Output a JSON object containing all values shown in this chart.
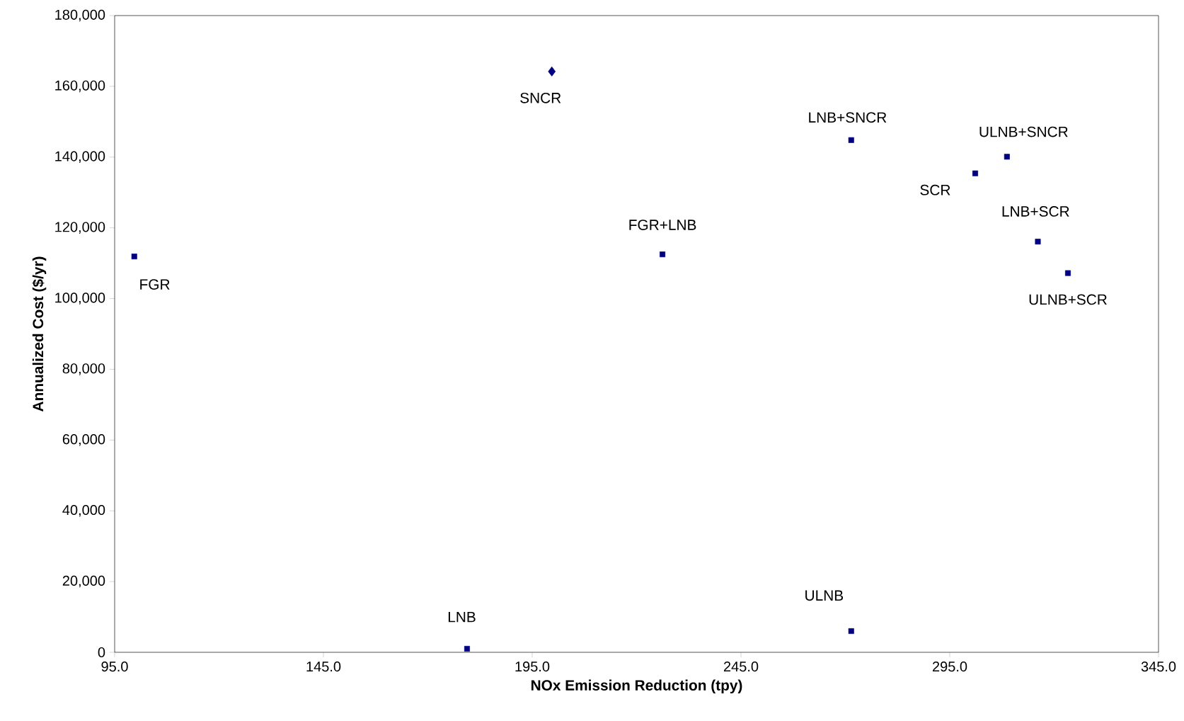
{
  "chart_data": {
    "type": "scatter",
    "xlabel": "NOx Emission Reduction (tpy)",
    "ylabel": "Annualized Cost ($/yr)",
    "xlim": [
      95,
      345
    ],
    "ylim": [
      0,
      180000
    ],
    "xticks": [
      {
        "value": 95,
        "label": "95.0"
      },
      {
        "value": 145,
        "label": "145.0"
      },
      {
        "value": 195,
        "label": "195.0"
      },
      {
        "value": 245,
        "label": "245.0"
      },
      {
        "value": 295,
        "label": "295.0"
      },
      {
        "value": 345,
        "label": "345.0"
      }
    ],
    "yticks": [
      {
        "value": 0,
        "label": "0"
      },
      {
        "value": 20000,
        "label": "20,000"
      },
      {
        "value": 40000,
        "label": "40,000"
      },
      {
        "value": 60000,
        "label": "60,000"
      },
      {
        "value": 80000,
        "label": "80,000"
      },
      {
        "value": 100000,
        "label": "100,000"
      },
      {
        "value": 120000,
        "label": "120,000"
      },
      {
        "value": 140000,
        "label": "140,000"
      },
      {
        "value": 160000,
        "label": "160,000"
      },
      {
        "value": 180000,
        "label": "180,000"
      }
    ],
    "grid": false,
    "series": [
      {
        "color": "#000080",
        "marker": "diamond",
        "x": [
          199.7
        ],
        "values": [
          164200
        ]
      },
      {
        "color": "#000080",
        "marker": "square",
        "x": [
          99.7,
          179.4,
          226.2,
          271.4,
          271.4,
          301.1,
          308.7,
          316.1,
          323.3
        ],
        "values": [
          111900,
          1000,
          112500,
          144800,
          6000,
          135400,
          140100,
          116100,
          107200
        ]
      }
    ],
    "annotations": [
      {
        "text": "FGR",
        "x": 99.7,
        "y": 111900
      },
      {
        "text": "SNCR",
        "x": 199.7,
        "y": 164200
      },
      {
        "text": "LNB",
        "x": 179.4,
        "y": 1000
      },
      {
        "text": "FGR+LNB",
        "x": 226.2,
        "y": 112500
      },
      {
        "text": "LNB+SNCR",
        "x": 271.4,
        "y": 144800
      },
      {
        "text": "ULNB",
        "x": 271.4,
        "y": 6000
      },
      {
        "text": "SCR",
        "x": 301.1,
        "y": 135400
      },
      {
        "text": "ULNB+SNCR",
        "x": 308.7,
        "y": 140100
      },
      {
        "text": "LNB+SCR",
        "x": 316.1,
        "y": 116100
      },
      {
        "text": "ULNB+SCR",
        "x": 323.3,
        "y": 107200
      }
    ]
  }
}
